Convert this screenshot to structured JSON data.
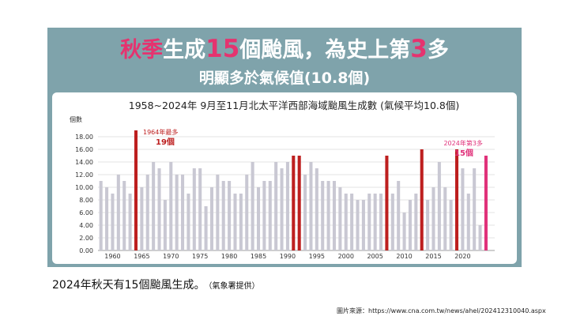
{
  "headline": {
    "part1": "秋季",
    "part2": "生成",
    "part3": "15",
    "part4": "個颱風，為史上第",
    "part5": "3",
    "part6": "多",
    "line2": "明顯多於氣候值(10.8個)"
  },
  "chart_data": {
    "type": "bar",
    "title": "1958~2024年 9月至11月北太平洋西部海域颱風生成數 (氣候平均10.8個)",
    "ylabel": "個數",
    "ylim": [
      0,
      20
    ],
    "yticks": [
      "0.00",
      "2.00",
      "4.00",
      "6.00",
      "8.00",
      "10.00",
      "12.00",
      "14.00",
      "16.00",
      "18.00"
    ],
    "xticks": [
      "1960",
      "1965",
      "1970",
      "1975",
      "1980",
      "1985",
      "1990",
      "1995",
      "2000",
      "2005",
      "2010",
      "2015",
      "2020"
    ],
    "grid": true,
    "x": [
      1958,
      1959,
      1960,
      1961,
      1962,
      1963,
      1964,
      1965,
      1966,
      1967,
      1968,
      1969,
      1970,
      1971,
      1972,
      1973,
      1974,
      1975,
      1976,
      1977,
      1978,
      1979,
      1980,
      1981,
      1982,
      1983,
      1984,
      1985,
      1986,
      1987,
      1988,
      1989,
      1990,
      1991,
      1992,
      1993,
      1994,
      1995,
      1996,
      1997,
      1998,
      1999,
      2000,
      2001,
      2002,
      2003,
      2004,
      2005,
      2006,
      2007,
      2008,
      2009,
      2010,
      2011,
      2012,
      2013,
      2014,
      2015,
      2016,
      2017,
      2018,
      2019,
      2020,
      2021,
      2022,
      2023,
      2024
    ],
    "values": [
      11,
      10,
      9,
      12,
      11,
      9,
      19,
      10,
      12,
      14,
      13,
      8,
      14,
      12,
      12,
      9,
      13,
      13,
      7,
      10,
      12,
      11,
      11,
      9,
      9,
      12,
      14,
      10,
      11,
      11,
      14,
      13,
      14,
      15,
      15,
      12,
      14,
      13,
      11,
      11,
      11,
      10,
      9,
      9,
      8,
      8,
      9,
      9,
      9,
      15,
      9,
      11,
      6,
      8,
      9,
      16,
      8,
      10,
      14,
      10,
      8,
      16,
      13,
      9,
      13,
      4,
      15
    ],
    "highlight_years": [
      1964,
      1991,
      1992,
      2007,
      2013,
      2019,
      2024
    ],
    "annotations": [
      {
        "line1": "1964年最多",
        "line2": "19個",
        "year": 1964
      },
      {
        "line1": "2024年第3多",
        "line2": "15個",
        "year": 2024
      }
    ],
    "colors": {
      "bar": "#c9c8d3",
      "highlight": "#bd1f1f",
      "current": "#e0317a",
      "grid": "#dadada"
    }
  },
  "caption": {
    "main": "2024年秋天有15個颱風生成。",
    "source": "（氣象署提供）"
  },
  "credit": "圖片來源：https://www.cna.com.tw/news/ahel/202412310040.aspx"
}
